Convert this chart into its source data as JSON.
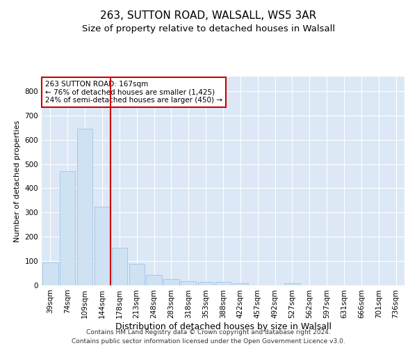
{
  "title1": "263, SUTTON ROAD, WALSALL, WS5 3AR",
  "title2": "Size of property relative to detached houses in Walsall",
  "xlabel": "Distribution of detached houses by size in Walsall",
  "ylabel": "Number of detached properties",
  "categories": [
    "39sqm",
    "74sqm",
    "109sqm",
    "144sqm",
    "178sqm",
    "213sqm",
    "248sqm",
    "283sqm",
    "318sqm",
    "353sqm",
    "388sqm",
    "422sqm",
    "457sqm",
    "492sqm",
    "527sqm",
    "562sqm",
    "597sqm",
    "631sqm",
    "666sqm",
    "701sqm",
    "736sqm"
  ],
  "values": [
    95,
    470,
    645,
    325,
    155,
    90,
    42,
    27,
    18,
    15,
    13,
    8,
    0,
    0,
    8,
    0,
    0,
    0,
    0,
    0,
    0
  ],
  "bar_color": "#cfe2f3",
  "bar_edge_color": "#a8c8e8",
  "vline_x": 3.5,
  "vline_color": "#cc0000",
  "annotation_line1": "263 SUTTON ROAD: 167sqm",
  "annotation_line2": "← 76% of detached houses are smaller (1,425)",
  "annotation_line3": "24% of semi-detached houses are larger (450) →",
  "box_edge_color": "#cc0000",
  "ylim": [
    0,
    860
  ],
  "yticks": [
    0,
    100,
    200,
    300,
    400,
    500,
    600,
    700,
    800
  ],
  "background_color": "#dce8f5",
  "footer_line1": "Contains HM Land Registry data © Crown copyright and database right 2024.",
  "footer_line2": "Contains public sector information licensed under the Open Government Licence v3.0.",
  "title1_fontsize": 11,
  "title2_fontsize": 9.5,
  "xlabel_fontsize": 9,
  "ylabel_fontsize": 8,
  "tick_fontsize": 7.5,
  "footer_fontsize": 6.5,
  "annot_fontsize": 7.5
}
